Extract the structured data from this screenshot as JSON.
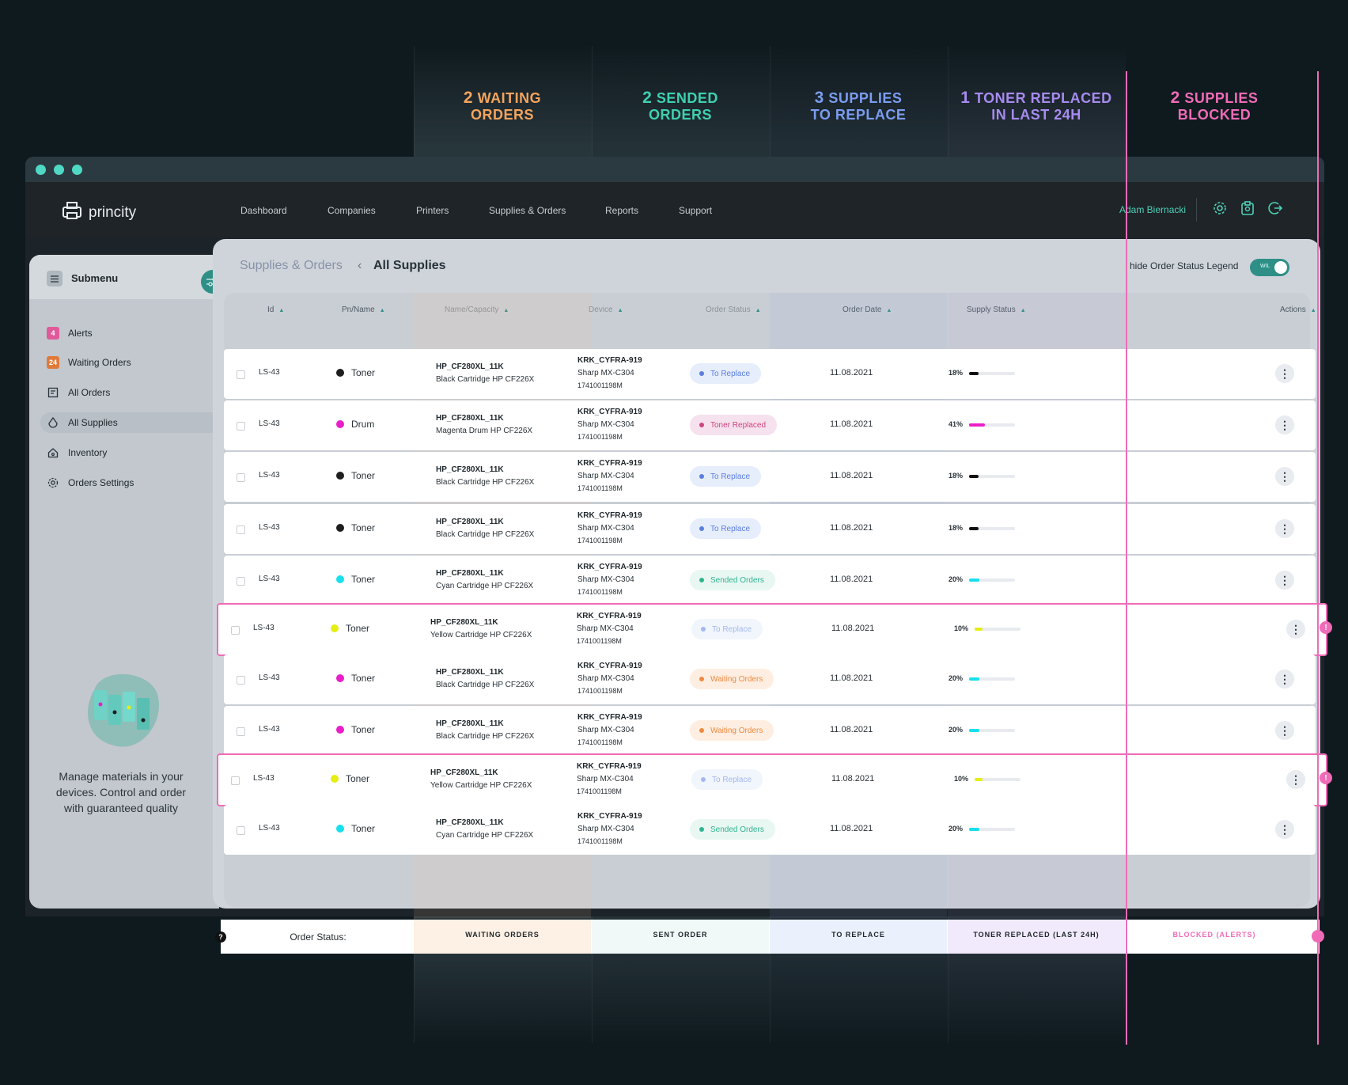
{
  "summary": [
    {
      "count": "2",
      "label_line1": "WAITING",
      "label_line2": "ORDERS",
      "color": "#f5a45d"
    },
    {
      "count": "2",
      "label_line1": "SENDED",
      "label_line2": "ORDERS",
      "color": "#3fd0b0"
    },
    {
      "count": "3",
      "label_line1": "SUPPLIES",
      "label_line2": "TO REPLACE",
      "color": "#7b9cf0"
    },
    {
      "count": "1",
      "label_line1": "TONER REPLACED",
      "label_line2": "IN LAST 24H",
      "color": "#a78bf0"
    },
    {
      "count": "2",
      "label_line1": "SUPPLIES",
      "label_line2": "BLOCKED",
      "color": "#f06bb7"
    }
  ],
  "app": {
    "logo": "princity",
    "nav": [
      "Dashboard",
      "Companies",
      "Printers",
      "Supplies & Orders",
      "Reports",
      "Support"
    ],
    "user": "Adam Biernacki"
  },
  "sidebar": {
    "title": "Submenu",
    "items": [
      {
        "label": "Alerts",
        "badge": "4",
        "badge_color": "#e05a9a"
      },
      {
        "label": "Waiting Orders",
        "badge": "24",
        "badge_color": "#e07a3a"
      },
      {
        "label": "All Orders",
        "icon": "orders-icon"
      },
      {
        "label": "All Supplies",
        "icon": "drop-icon",
        "active": true
      },
      {
        "label": "Inventory",
        "icon": "home-icon"
      },
      {
        "label": "Orders Settings",
        "icon": "gear-icon"
      }
    ],
    "promo": "Manage materials in your devices. Control and order with guaranteed quality"
  },
  "page": {
    "breadcrumb_parent": "Supplies & Orders",
    "breadcrumb_current": "All Supplies",
    "legend_toggle_label": "hide Order Status Legend",
    "toggle_text": "WIL"
  },
  "table": {
    "headers": [
      "Id",
      "Pn/Name",
      "Name/Capacity",
      "Device",
      "Order Status",
      "Order Date",
      "Supply Status",
      "Actions"
    ],
    "rows": [
      {
        "id": "LS-43",
        "type": "Toner",
        "dot": "#1e1e1e",
        "pn": "HP_CF280XL_11K",
        "desc": "Black Cartridge HP CF226X",
        "dev1": "KRK_CYFRA-919",
        "dev2": "Sharp MX-C304",
        "dev3": "1741001198M",
        "status": "To Replace",
        "date": "11.08.2021",
        "pct": "18%",
        "pct_value": 0.18,
        "bar_color": "#111111",
        "blocked": false
      },
      {
        "id": "LS-43",
        "type": "Drum",
        "dot": "#e91ec8",
        "pn": "HP_CF280XL_11K",
        "desc": "Magenta Drum HP CF226X",
        "dev1": "KRK_CYFRA-919",
        "dev2": "Sharp MX-C304",
        "dev3": "1741001198M",
        "status": "Toner Replaced",
        "date": "11.08.2021",
        "pct": "41%",
        "pct_value": 0.41,
        "bar_color": "#e91ec8",
        "blocked": false
      },
      {
        "id": "LS-43",
        "type": "Toner",
        "dot": "#1e1e1e",
        "pn": "HP_CF280XL_11K",
        "desc": "Black Cartridge HP CF226X",
        "dev1": "KRK_CYFRA-919",
        "dev2": "Sharp MX-C304",
        "dev3": "1741001198M",
        "status": "To Replace",
        "date": "11.08.2021",
        "pct": "18%",
        "pct_value": 0.18,
        "bar_color": "#111111",
        "blocked": false
      },
      {
        "id": "LS-43",
        "type": "Toner",
        "dot": "#1e1e1e",
        "pn": "HP_CF280XL_11K",
        "desc": "Black Cartridge HP CF226X",
        "dev1": "KRK_CYFRA-919",
        "dev2": "Sharp MX-C304",
        "dev3": "1741001198M",
        "status": "To Replace",
        "date": "11.08.2021",
        "pct": "18%",
        "pct_value": 0.18,
        "bar_color": "#111111",
        "blocked": false
      },
      {
        "id": "LS-43",
        "type": "Toner",
        "dot": "#17e0ee",
        "pn": "HP_CF280XL_11K",
        "desc": "Cyan Cartridge HP CF226X",
        "dev1": "KRK_CYFRA-919",
        "dev2": "Sharp MX-C304",
        "dev3": "1741001198M",
        "status": "Sended Orders",
        "date": "11.08.2021",
        "pct": "20%",
        "pct_value": 0.2,
        "bar_color": "#17e0ee",
        "blocked": false
      },
      {
        "id": "LS-43",
        "type": "Toner",
        "dot": "#e5ee10",
        "pn": "HP_CF280XL_11K",
        "desc": "Yellow Cartridge HP CF226X",
        "dev1": "KRK_CYFRA-919",
        "dev2": "Sharp MX-C304",
        "dev3": "1741001198M",
        "status": "To Replace",
        "date": "11.08.2021",
        "pct": "10%",
        "pct_value": 0.1,
        "bar_color": "#e5ee10",
        "blocked": true
      },
      {
        "id": "LS-43",
        "type": "Toner",
        "dot": "#e91ec8",
        "pn": "HP_CF280XL_11K",
        "desc": "Black Cartridge HP CF226X",
        "dev1": "KRK_CYFRA-919",
        "dev2": "Sharp MX-C304",
        "dev3": "1741001198M",
        "status": "Waiting Orders",
        "date": "11.08.2021",
        "pct": "20%",
        "pct_value": 0.2,
        "bar_color": "#17e0ee",
        "blocked": false
      },
      {
        "id": "LS-43",
        "type": "Toner",
        "dot": "#e91ec8",
        "pn": "HP_CF280XL_11K",
        "desc": "Black Cartridge HP CF226X",
        "dev1": "KRK_CYFRA-919",
        "dev2": "Sharp MX-C304",
        "dev3": "1741001198M",
        "status": "Waiting Orders",
        "date": "11.08.2021",
        "pct": "20%",
        "pct_value": 0.2,
        "bar_color": "#17e0ee",
        "blocked": false
      },
      {
        "id": "LS-43",
        "type": "Toner",
        "dot": "#e5ee10",
        "pn": "HP_CF280XL_11K",
        "desc": "Yellow Cartridge HP CF226X",
        "dev1": "KRK_CYFRA-919",
        "dev2": "Sharp MX-C304",
        "dev3": "1741001198M",
        "status": "To Replace",
        "date": "11.08.2021",
        "pct": "10%",
        "pct_value": 0.1,
        "bar_color": "#e5ee10",
        "blocked": true
      },
      {
        "id": "LS-43",
        "type": "Toner",
        "dot": "#17e0ee",
        "pn": "HP_CF280XL_11K",
        "desc": "Cyan Cartridge HP CF226X",
        "dev1": "KRK_CYFRA-919",
        "dev2": "Sharp MX-C304",
        "dev3": "1741001198M",
        "status": "Sended Orders",
        "date": "11.08.2021",
        "pct": "20%",
        "pct_value": 0.2,
        "bar_color": "#17e0ee",
        "blocked": false
      }
    ]
  },
  "status_styles": {
    "To Replace": {
      "bg": "#e6edfb",
      "fg": "#5b7fe0",
      "dot": "#5b7fe0"
    },
    "Toner Replaced": {
      "bg": "#f6e1ee",
      "fg": "#d1437f",
      "dot": "#d1437f"
    },
    "Sended Orders": {
      "bg": "#e9f7f3",
      "fg": "#2fb48e",
      "dot": "#2fb48e"
    },
    "Waiting Orders": {
      "bg": "#fdeee1",
      "fg": "#ef8a3f",
      "dot": "#ef8a3f"
    }
  },
  "legend": {
    "title": "Order Status:",
    "items": [
      "WAITING ORDERS",
      "SENT ORDER",
      "TO REPLACE",
      "TONER REPLACED (LAST 24H)",
      "BLOCKED (ALERTS)"
    ],
    "colors": [
      "#1e262b",
      "#1e262b",
      "#1e262b",
      "#1e262b",
      "#f06bb7"
    ]
  }
}
